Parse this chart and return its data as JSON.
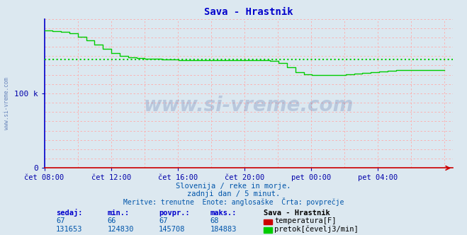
{
  "title": "Sava - Hrastnik",
  "bg_color": "#dce8f0",
  "plot_bg_color": "#dce8f0",
  "title_color": "#0000cc",
  "axis_color": "#0000cc",
  "tick_color": "#0000aa",
  "flow_color": "#00cc00",
  "temp_color": "#cc0000",
  "avg_color": "#00cc00",
  "ylim": [
    0,
    200000
  ],
  "ytick_labels": [
    "0",
    "100 k"
  ],
  "avg_value": 145708,
  "xtick_positions": [
    0,
    4,
    8,
    12,
    16,
    20
  ],
  "xtick_labels": [
    "čet 08:00",
    "čet 12:00",
    "čet 16:00",
    "čet 20:00",
    "pet 00:00",
    "pet 04:00"
  ],
  "subtitle1": "Slovenija / reke in morje.",
  "subtitle2": "zadnji dan / 5 minut.",
  "subtitle3": "Meritve: trenutne  Enote: anglosaške  Črta: povprečje",
  "watermark": "www.si-vreme.com",
  "watermark_color": "#1a3a8a",
  "footer_color": "#0055aa",
  "legend_title": "Sava - Hrastnik",
  "stat_headers": [
    "sedaj:",
    "min.:",
    "povpr.:",
    "maks.:"
  ],
  "temp_stats": [
    "67",
    "66",
    "67",
    "68"
  ],
  "flow_stats": [
    "131653",
    "124830",
    "145708",
    "184883"
  ],
  "temp_label": "temperatura[F]",
  "flow_label": "pretok[čevelj3/min]",
  "flow_data": [
    184000,
    183500,
    183000,
    182500,
    182000,
    181000,
    179500,
    177000,
    174000,
    171000,
    168000,
    165000,
    162000,
    159000,
    156000,
    153000,
    151000,
    149500,
    148500,
    148000,
    147500,
    147000,
    146500,
    146000,
    146000,
    145500,
    145500,
    145200,
    145000,
    145000,
    145000,
    145000,
    145000,
    145000,
    145000,
    145000,
    145000,
    145000,
    145000,
    145000,
    145000,
    145000,
    145000,
    145000,
    145000,
    145000,
    145000,
    144800,
    144500,
    144000,
    143000,
    141000,
    138000,
    134000,
    130000,
    127000,
    126000,
    125500,
    125000,
    124800,
    124800,
    124800,
    124800,
    124800,
    125000,
    125500,
    126000,
    126500,
    127000,
    127500,
    128000,
    128500,
    129000,
    129500,
    130000,
    130500,
    131000,
    131500,
    131653,
    131653,
    131653,
    131653,
    131653,
    131653,
    131653,
    131653,
    131653,
    131653
  ]
}
